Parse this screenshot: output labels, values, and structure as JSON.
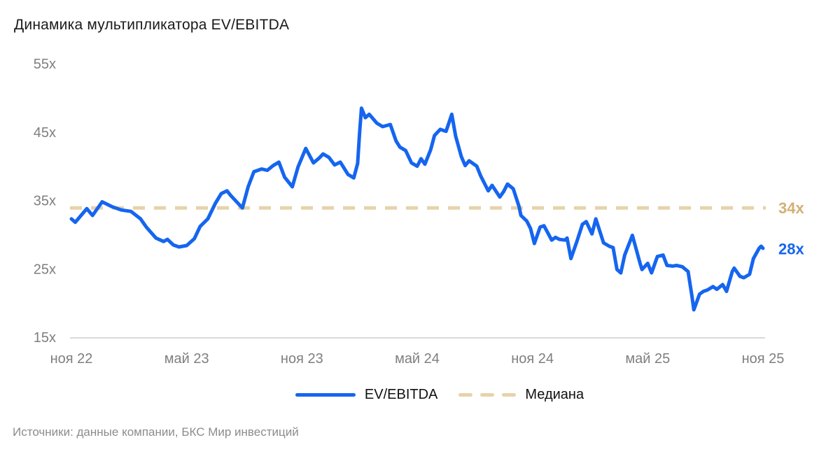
{
  "title": "Динамика мультипликатора EV/EBITDA",
  "source": "Источники: данные компании, БКС Мир инвестиций",
  "legend": [
    {
      "label": "EV/EBITDA",
      "type": "solid-line",
      "color": "#1565EF"
    },
    {
      "label": "Медиана",
      "type": "dashed-line",
      "color": "#E6D3AB"
    }
  ],
  "annotations": {
    "median_label": "34x",
    "last_value_label": "28x"
  },
  "colors": {
    "series_blue": "#1565EF",
    "median_tan": "#E6D3AB",
    "median_label_gold": "#D3B077",
    "axis_text_gray": "#7F7F7F",
    "axis_line_gray": "#D9D9D9",
    "title_black": "#1A1A1A",
    "source_gray": "#8C8C8C"
  },
  "chart_data": {
    "type": "line",
    "title": "Динамика мультипликатора EV/EBITDA",
    "xlabel": "",
    "ylabel": "",
    "ylim": [
      15,
      55
    ],
    "x_months_range": [
      0,
      36
    ],
    "grid": false,
    "legend_position": "bottom",
    "y_ticks": [
      {
        "label": "55x",
        "value": 55
      },
      {
        "label": "45x",
        "value": 45
      },
      {
        "label": "35x",
        "value": 35
      },
      {
        "label": "25x",
        "value": 25
      },
      {
        "label": "15x",
        "value": 15
      }
    ],
    "x_ticks": [
      {
        "label": "ноя 22",
        "t": 0
      },
      {
        "label": "май 23",
        "t": 6
      },
      {
        "label": "ноя 23",
        "t": 12
      },
      {
        "label": "май 24",
        "t": 18
      },
      {
        "label": "ноя 24",
        "t": 24
      },
      {
        "label": "май 25",
        "t": 30
      },
      {
        "label": "ноя 25",
        "t": 36
      }
    ],
    "median": {
      "name": "Медиана",
      "value": 34,
      "style": "dashed"
    },
    "series": [
      {
        "name": "EV/EBITDA",
        "last_value": 28,
        "points": [
          [
            0,
            32.4
          ],
          [
            0.2,
            31.9
          ],
          [
            0.8,
            33.9
          ],
          [
            1.1,
            32.9
          ],
          [
            1.6,
            34.9
          ],
          [
            2.1,
            34.2
          ],
          [
            2.6,
            33.7
          ],
          [
            3.1,
            33.5
          ],
          [
            3.6,
            32.4
          ],
          [
            3.9,
            31.2
          ],
          [
            4.4,
            29.6
          ],
          [
            4.8,
            29.1
          ],
          [
            5.0,
            29.4
          ],
          [
            5.3,
            28.6
          ],
          [
            5.6,
            28.3
          ],
          [
            6.0,
            28.5
          ],
          [
            6.4,
            29.5
          ],
          [
            6.7,
            31.3
          ],
          [
            7.1,
            32.4
          ],
          [
            7.5,
            34.7
          ],
          [
            7.8,
            36.1
          ],
          [
            8.1,
            36.5
          ],
          [
            8.3,
            35.8
          ],
          [
            8.7,
            34.6
          ],
          [
            8.9,
            34.0
          ],
          [
            9.2,
            37.1
          ],
          [
            9.5,
            39.3
          ],
          [
            9.9,
            39.7
          ],
          [
            10.2,
            39.5
          ],
          [
            10.5,
            40.2
          ],
          [
            10.8,
            40.7
          ],
          [
            11.1,
            38.5
          ],
          [
            11.5,
            37.1
          ],
          [
            11.8,
            40.0
          ],
          [
            12.2,
            42.7
          ],
          [
            12.6,
            40.6
          ],
          [
            12.9,
            41.3
          ],
          [
            13.1,
            41.9
          ],
          [
            13.4,
            41.4
          ],
          [
            13.7,
            40.3
          ],
          [
            14.0,
            40.7
          ],
          [
            14.4,
            38.9
          ],
          [
            14.7,
            38.4
          ],
          [
            14.9,
            40.5
          ],
          [
            15.0,
            45.0
          ],
          [
            15.1,
            48.6
          ],
          [
            15.3,
            47.2
          ],
          [
            15.5,
            47.7
          ],
          [
            15.9,
            46.4
          ],
          [
            16.2,
            45.9
          ],
          [
            16.6,
            46.2
          ],
          [
            16.9,
            43.8
          ],
          [
            17.1,
            42.9
          ],
          [
            17.4,
            42.4
          ],
          [
            17.7,
            40.6
          ],
          [
            18.0,
            40.1
          ],
          [
            18.2,
            41.2
          ],
          [
            18.4,
            40.4
          ],
          [
            18.7,
            42.5
          ],
          [
            18.9,
            44.6
          ],
          [
            19.2,
            45.5
          ],
          [
            19.5,
            45.2
          ],
          [
            19.8,
            47.7
          ],
          [
            20.0,
            44.5
          ],
          [
            20.3,
            41.5
          ],
          [
            20.5,
            40.2
          ],
          [
            20.7,
            40.9
          ],
          [
            21.1,
            40.1
          ],
          [
            21.3,
            38.7
          ],
          [
            21.5,
            37.6
          ],
          [
            21.7,
            36.5
          ],
          [
            21.9,
            37.3
          ],
          [
            22.3,
            35.6
          ],
          [
            22.5,
            36.4
          ],
          [
            22.7,
            37.5
          ],
          [
            23.0,
            36.8
          ],
          [
            23.3,
            34.2
          ],
          [
            23.4,
            32.9
          ],
          [
            23.7,
            32.1
          ],
          [
            23.9,
            31.0
          ],
          [
            24.1,
            28.8
          ],
          [
            24.4,
            31.2
          ],
          [
            24.6,
            31.4
          ],
          [
            25.0,
            29.3
          ],
          [
            25.2,
            29.7
          ],
          [
            25.4,
            29.4
          ],
          [
            25.7,
            29.3
          ],
          [
            25.8,
            29.6
          ],
          [
            26.0,
            26.6
          ],
          [
            26.3,
            29.0
          ],
          [
            26.6,
            31.6
          ],
          [
            26.8,
            32.0
          ],
          [
            27.1,
            30.2
          ],
          [
            27.3,
            32.4
          ],
          [
            27.7,
            28.9
          ],
          [
            28.0,
            28.4
          ],
          [
            28.2,
            28.2
          ],
          [
            28.4,
            25.0
          ],
          [
            28.6,
            24.5
          ],
          [
            28.8,
            27.1
          ],
          [
            29.2,
            30.0
          ],
          [
            29.6,
            25.9
          ],
          [
            29.7,
            25.0
          ],
          [
            30.0,
            25.9
          ],
          [
            30.2,
            24.5
          ],
          [
            30.5,
            26.9
          ],
          [
            30.8,
            27.1
          ],
          [
            31.0,
            25.6
          ],
          [
            31.3,
            25.5
          ],
          [
            31.5,
            25.6
          ],
          [
            31.8,
            25.4
          ],
          [
            32.1,
            24.7
          ],
          [
            32.3,
            21.1
          ],
          [
            32.4,
            19.1
          ],
          [
            32.7,
            21.4
          ],
          [
            32.9,
            21.8
          ],
          [
            33.1,
            22.0
          ],
          [
            33.4,
            22.5
          ],
          [
            33.6,
            22.1
          ],
          [
            33.9,
            22.8
          ],
          [
            34.1,
            21.8
          ],
          [
            34.4,
            24.7
          ],
          [
            34.5,
            25.2
          ],
          [
            34.8,
            24.0
          ],
          [
            35.0,
            23.8
          ],
          [
            35.3,
            24.3
          ],
          [
            35.5,
            26.6
          ],
          [
            35.8,
            28.1
          ],
          [
            35.9,
            28.4
          ],
          [
            36.0,
            28.1
          ]
        ]
      }
    ]
  }
}
